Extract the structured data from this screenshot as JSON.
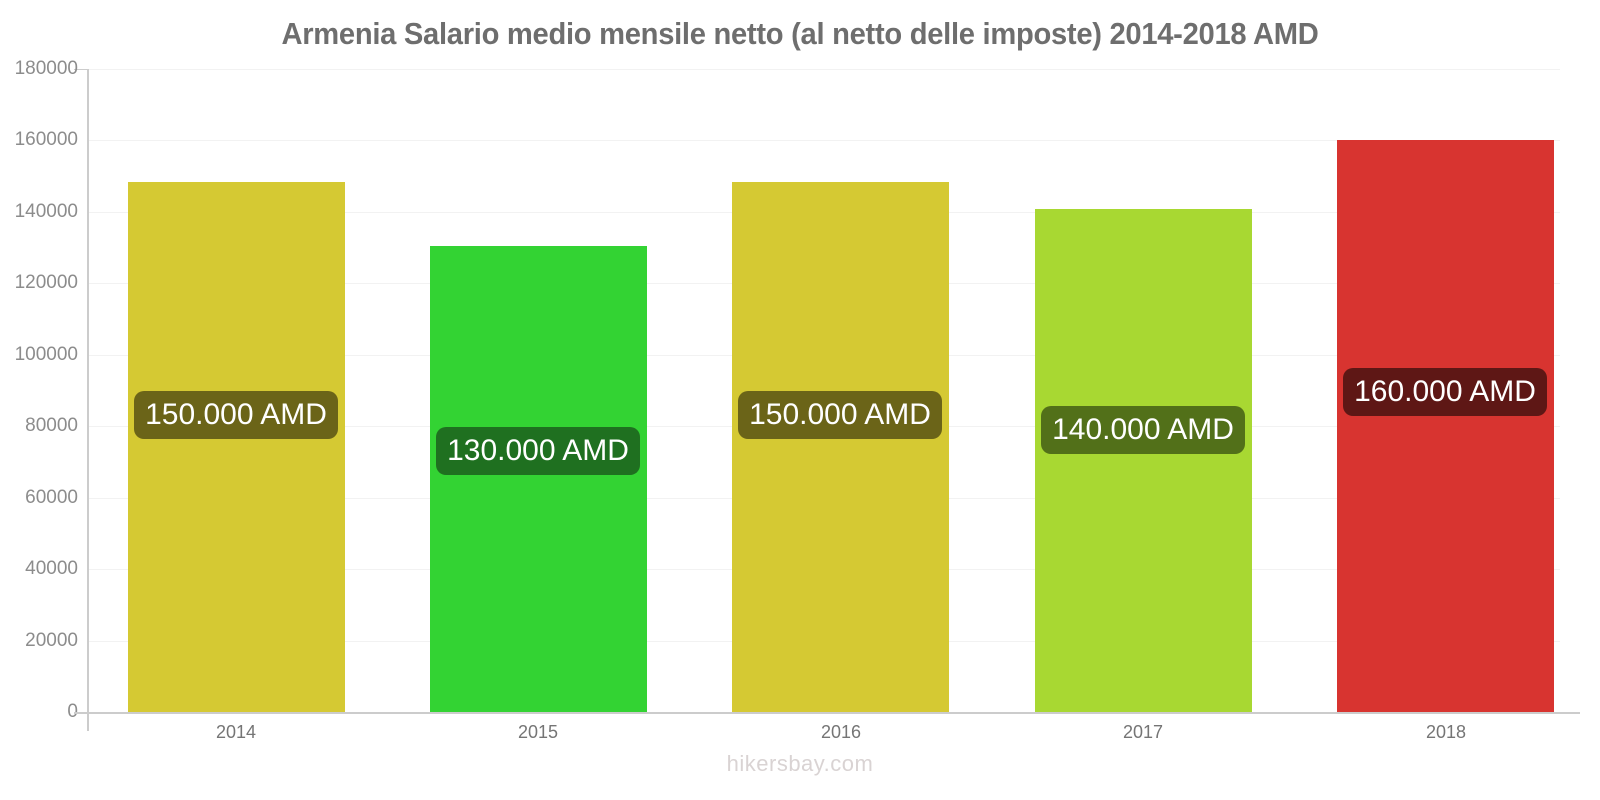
{
  "page": {
    "title": "Armenia Salario medio mensile netto (al netto delle imposte) 2014-2018 AMD",
    "footer": "hikersbay.com"
  },
  "chart_data": {
    "type": "bar",
    "title": "Armenia Salario medio mensile netto (al netto delle imposte) 2014-2018 AMD",
    "categories": [
      "2014",
      "2015",
      "2016",
      "2017",
      "2018"
    ],
    "values": [
      148500,
      130500,
      148500,
      140900,
      160200
    ],
    "bar_labels": [
      "150.000 AMD",
      "130.000 AMD",
      "150.000 AMD",
      "140.000 AMD",
      "160.000 AMD"
    ],
    "bar_colors": [
      "#d5c933",
      "#33d333",
      "#d5c933",
      "#a8d832",
      "#d83430"
    ],
    "bar_label_bg_colors": [
      "#6b6418",
      "#1f7020",
      "#6b6418",
      "#527019",
      "#5e1715"
    ],
    "xlabel": "",
    "ylabel": "",
    "ylim": [
      0,
      180000
    ],
    "yticks": [
      0,
      20000,
      40000,
      60000,
      80000,
      100000,
      120000,
      140000,
      160000,
      180000
    ],
    "grid": "horizontal-faint",
    "legend": false,
    "axis_color": "#cccccc",
    "gridline_color": "#f2f2f2",
    "title_color": "#6e6e6e",
    "tick_label_color": "#8c8c8c",
    "footer": "hikersbay.com"
  }
}
